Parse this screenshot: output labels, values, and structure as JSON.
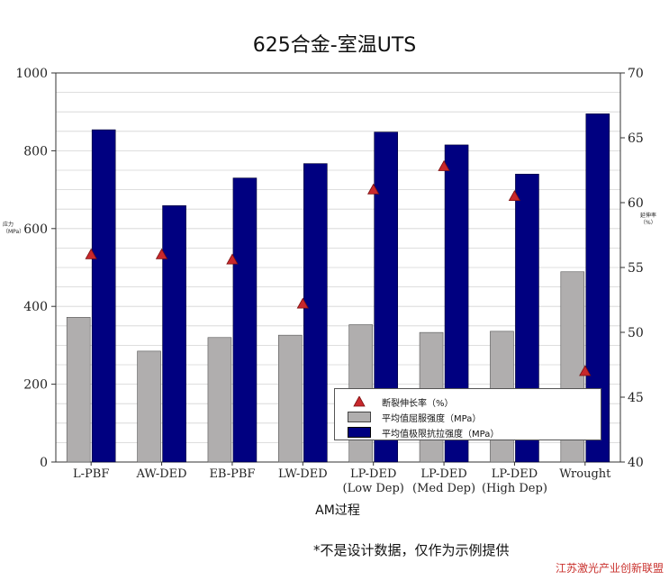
{
  "chart_data": {
    "type": "bar",
    "title": "625合金-室温UTS",
    "xlabel": "AM过程",
    "ylabel_left": "应力（MPa）",
    "ylabel_right": "延伸率（%）",
    "categories": [
      "L-PBF",
      "AW-DED",
      "EB-PBF",
      "LW-DED",
      "LP-DED\n(Low Dep)",
      "LP-DED\n(Med Dep)",
      "LP-DED\n(High Dep)",
      "Wrought"
    ],
    "ylim_left": [
      0,
      1000
    ],
    "yticks_left": [
      0,
      200,
      400,
      600,
      800,
      1000
    ],
    "ylim_right": [
      40,
      70
    ],
    "yticks_right": [
      40,
      45,
      50,
      55,
      60,
      65,
      70
    ],
    "series": [
      {
        "name": "平均值屈服强度（MPa）",
        "kind": "bar",
        "axis": "left",
        "color": "#b0aeae",
        "values": [
          372,
          285,
          320,
          326,
          353,
          333,
          336,
          489
        ]
      },
      {
        "name": "平均值极限抗拉强度（MPa）",
        "kind": "bar",
        "axis": "left",
        "color": "#000080",
        "values": [
          854,
          659,
          730,
          767,
          848,
          815,
          740,
          895
        ]
      },
      {
        "name": "断裂伸长率（%）",
        "kind": "marker",
        "axis": "right",
        "color": "#c8282c",
        "values": [
          56,
          56,
          55.6,
          52.2,
          61,
          62.8,
          60.5,
          47
        ]
      }
    ],
    "grid": true,
    "legend_position": "bottom-right"
  },
  "note": "*不是设计数据，仅作为示例提供",
  "watermark": "江苏激光产业创新联盟",
  "colors": {
    "grid": "#d4d4d4",
    "axis": "#333333"
  }
}
